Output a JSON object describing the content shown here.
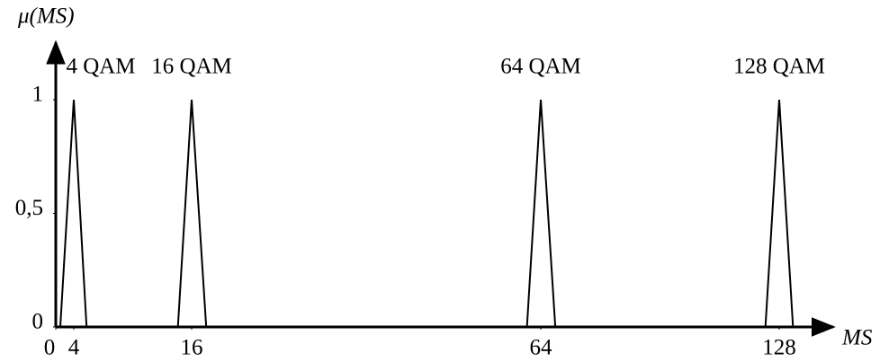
{
  "chart_data": {
    "type": "line",
    "ylabel": "μ(MS)",
    "xlabel": "MS",
    "xlim": [
      0,
      143
    ],
    "xticks": [
      0,
      4,
      16,
      64,
      128
    ],
    "ylim": [
      0,
      1.26
    ],
    "yticks": [
      0,
      {
        "value": 0.5,
        "label": "0,5"
      },
      1
    ],
    "series": [
      {
        "name": "4 QAM",
        "color": "#000000",
        "x": [
          1,
          4,
          5.3
        ],
        "values": [
          0,
          1,
          0
        ]
      },
      {
        "name": "16 QAM",
        "color": "#000000",
        "x": [
          14.6,
          16,
          18
        ],
        "values": [
          0,
          1,
          0
        ]
      },
      {
        "name": "64 QAM",
        "color": "#000000",
        "x": [
          62.1,
          64,
          67.9
        ],
        "values": [
          0,
          1,
          0
        ]
      },
      {
        "name": "128 QAM",
        "color": "#000000",
        "x": [
          124.3,
          128,
          131.7
        ],
        "values": [
          0,
          1,
          0
        ]
      }
    ]
  }
}
